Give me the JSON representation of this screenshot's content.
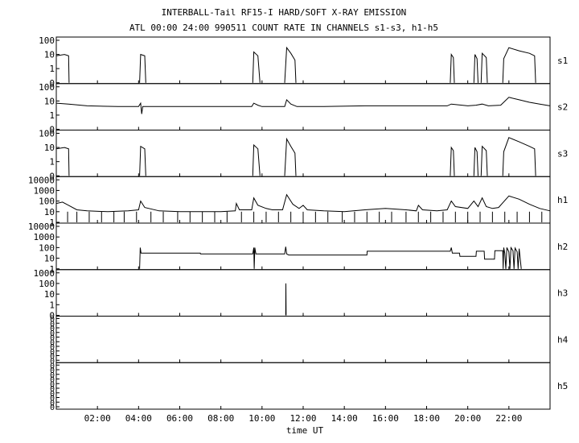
{
  "chart_data": {
    "type": "line",
    "title": "INTERBALL-Tail RF15-I HARD/SOFT X-RAY EMISSION",
    "subtitle": "ATL 00:00 24:00 990511  COUNT RATE IN CHANNELS s1-s3, h1-h5",
    "xlabel": "time UT",
    "x_unit": "hours UT",
    "xlim": [
      0,
      24
    ],
    "x_ticks": [
      {
        "label": "02:00",
        "value": 2
      },
      {
        "label": "04:00",
        "value": 4
      },
      {
        "label": "06:00",
        "value": 6
      },
      {
        "label": "08:00",
        "value": 8
      },
      {
        "label": "10:00",
        "value": 10
      },
      {
        "label": "12:00",
        "value": 12
      },
      {
        "label": "14:00",
        "value": 14
      },
      {
        "label": "16:00",
        "value": 16
      },
      {
        "label": "18:00",
        "value": 18
      },
      {
        "label": "20:00",
        "value": 20
      },
      {
        "label": "22:00",
        "value": 22
      }
    ],
    "y_scale": "log",
    "grid": false,
    "line_color": "#000000",
    "panels": [
      {
        "name": "s1",
        "ylim": [
          0.1,
          100
        ],
        "y_tick_labels": [
          "100",
          "10",
          "1",
          "0"
        ],
        "y_tick_values": [
          100,
          10,
          1,
          0.1
        ],
        "series": [
          [
            [
              0.0,
              8
            ],
            [
              0.4,
              10
            ],
            [
              0.6,
              8
            ],
            [
              0.62,
              0.1
            ]
          ],
          [
            [
              4.05,
              0.1
            ],
            [
              4.1,
              10
            ],
            [
              4.3,
              8
            ],
            [
              4.35,
              0.1
            ]
          ],
          [
            [
              9.55,
              0.1
            ],
            [
              9.6,
              15
            ],
            [
              9.8,
              8
            ],
            [
              9.9,
              0.1
            ]
          ],
          [
            [
              11.1,
              0.1
            ],
            [
              11.2,
              30
            ],
            [
              11.4,
              12
            ],
            [
              11.6,
              4
            ],
            [
              11.65,
              0.1
            ]
          ],
          [
            [
              19.15,
              0.1
            ],
            [
              19.2,
              10
            ],
            [
              19.3,
              6
            ],
            [
              19.35,
              0.1
            ]
          ],
          [
            [
              20.3,
              0.1
            ],
            [
              20.35,
              10
            ],
            [
              20.45,
              5
            ],
            [
              20.5,
              0.1
            ]
          ],
          [
            [
              20.65,
              0.1
            ],
            [
              20.7,
              12
            ],
            [
              20.9,
              6
            ],
            [
              20.95,
              0.1
            ]
          ],
          [
            [
              21.7,
              0.1
            ],
            [
              21.75,
              5
            ],
            [
              22.0,
              30
            ],
            [
              22.5,
              18
            ],
            [
              23.0,
              12
            ],
            [
              23.25,
              8
            ],
            [
              23.3,
              0.1
            ]
          ]
        ]
      },
      {
        "name": "s2",
        "ylim": [
          0.1,
          100
        ],
        "y_tick_labels": [
          "100",
          "10",
          "1",
          "0"
        ],
        "y_tick_values": [
          100,
          10,
          1,
          0.1
        ],
        "series": [
          [
            [
              0.0,
              7
            ],
            [
              0.6,
              6
            ],
            [
              1.5,
              4.5
            ],
            [
              3.0,
              4
            ],
            [
              4.0,
              4
            ],
            [
              4.1,
              7
            ],
            [
              4.15,
              1.2
            ],
            [
              4.2,
              4
            ],
            [
              5.0,
              4
            ],
            [
              7.0,
              4
            ],
            [
              8.0,
              4
            ],
            [
              9.5,
              4
            ],
            [
              9.6,
              7
            ],
            [
              9.8,
              5
            ],
            [
              10.0,
              4
            ],
            [
              11.1,
              4
            ],
            [
              11.2,
              12
            ],
            [
              11.4,
              6
            ],
            [
              11.7,
              4
            ],
            [
              13.0,
              4
            ],
            [
              15.0,
              4.5
            ],
            [
              17.0,
              4.5
            ],
            [
              19.0,
              4.5
            ],
            [
              19.2,
              6
            ],
            [
              20.0,
              4.5
            ],
            [
              20.4,
              5
            ],
            [
              20.7,
              6
            ],
            [
              21.0,
              4.5
            ],
            [
              21.6,
              5
            ],
            [
              22.0,
              18
            ],
            [
              22.5,
              12
            ],
            [
              23.0,
              8
            ],
            [
              23.5,
              6
            ],
            [
              24.0,
              4.5
            ]
          ]
        ]
      },
      {
        "name": "s3",
        "ylim": [
          0.1,
          100
        ],
        "y_tick_labels": [
          "100",
          "10",
          "1",
          "0"
        ],
        "y_tick_values": [
          100,
          10,
          1,
          0.1
        ],
        "series": [
          [
            [
              0.0,
              8
            ],
            [
              0.4,
              10
            ],
            [
              0.6,
              8
            ],
            [
              0.62,
              0.1
            ]
          ],
          [
            [
              4.05,
              0.1
            ],
            [
              4.1,
              12
            ],
            [
              4.3,
              8
            ],
            [
              4.35,
              0.1
            ]
          ],
          [
            [
              9.55,
              0.1
            ],
            [
              9.6,
              15
            ],
            [
              9.8,
              8
            ],
            [
              9.9,
              0.1
            ]
          ],
          [
            [
              11.1,
              0.1
            ],
            [
              11.2,
              40
            ],
            [
              11.4,
              12
            ],
            [
              11.6,
              4
            ],
            [
              11.65,
              0.1
            ]
          ],
          [
            [
              19.15,
              0.1
            ],
            [
              19.2,
              10
            ],
            [
              19.3,
              6
            ],
            [
              19.35,
              0.1
            ]
          ],
          [
            [
              20.3,
              0.1
            ],
            [
              20.35,
              10
            ],
            [
              20.45,
              5
            ],
            [
              20.5,
              0.1
            ]
          ],
          [
            [
              20.65,
              0.1
            ],
            [
              20.7,
              12
            ],
            [
              20.9,
              6
            ],
            [
              20.95,
              0.1
            ]
          ],
          [
            [
              21.7,
              0.1
            ],
            [
              21.75,
              5
            ],
            [
              22.0,
              50
            ],
            [
              22.5,
              25
            ],
            [
              23.0,
              12
            ],
            [
              23.25,
              8
            ],
            [
              23.3,
              0.1
            ]
          ]
        ]
      },
      {
        "name": "h1",
        "ylim": [
          1,
          10000
        ],
        "y_tick_labels": [
          "10000",
          "1000",
          "100",
          "10",
          "1"
        ],
        "y_tick_values": [
          10000,
          1000,
          100,
          10,
          1
        ],
        "series": [
          [
            [
              0.0,
              60
            ],
            [
              0.3,
              80
            ],
            [
              0.6,
              40
            ],
            [
              1.0,
              15
            ],
            [
              1.5,
              12
            ],
            [
              2.5,
              10
            ],
            [
              3.5,
              12
            ],
            [
              4.0,
              15
            ],
            [
              4.1,
              100
            ],
            [
              4.3,
              25
            ],
            [
              5.0,
              12
            ],
            [
              6.0,
              10
            ],
            [
              7.0,
              10
            ],
            [
              8.0,
              10
            ],
            [
              8.7,
              12
            ],
            [
              8.75,
              60
            ],
            [
              8.9,
              15
            ],
            [
              9.5,
              15
            ],
            [
              9.6,
              200
            ],
            [
              9.8,
              40
            ],
            [
              10.2,
              20
            ],
            [
              10.5,
              15
            ],
            [
              11.0,
              15
            ],
            [
              11.2,
              400
            ],
            [
              11.5,
              50
            ],
            [
              11.8,
              20
            ],
            [
              12.0,
              40
            ],
            [
              12.2,
              15
            ],
            [
              13.0,
              12
            ],
            [
              14.0,
              10
            ],
            [
              15.0,
              15
            ],
            [
              16.0,
              20
            ],
            [
              17.0,
              15
            ],
            [
              17.5,
              12
            ],
            [
              17.6,
              40
            ],
            [
              17.8,
              15
            ],
            [
              18.5,
              12
            ],
            [
              19.0,
              15
            ],
            [
              19.2,
              100
            ],
            [
              19.4,
              30
            ],
            [
              20.0,
              20
            ],
            [
              20.3,
              100
            ],
            [
              20.5,
              30
            ],
            [
              20.7,
              200
            ],
            [
              20.9,
              30
            ],
            [
              21.2,
              20
            ],
            [
              21.5,
              25
            ],
            [
              22.0,
              300
            ],
            [
              22.5,
              150
            ],
            [
              23.0,
              50
            ],
            [
              23.5,
              20
            ],
            [
              24.0,
              12
            ]
          ]
        ],
        "dropouts": [
          0.55,
          1.0,
          1.6,
          2.2,
          2.8,
          3.3,
          3.9,
          4.6,
          5.2,
          5.9,
          6.5,
          7.1,
          7.7,
          8.3,
          9.0,
          9.6,
          10.2,
          10.8,
          11.4,
          12.0,
          12.6,
          13.2,
          13.9,
          14.5,
          15.1,
          15.7,
          16.3,
          17.0,
          17.6,
          18.2,
          18.8,
          19.4,
          20.0,
          20.6,
          21.2,
          21.8,
          22.4,
          23.0,
          23.6
        ]
      },
      {
        "name": "h2",
        "ylim": [
          1,
          10000
        ],
        "y_tick_labels": [
          "10000",
          "1000",
          "100",
          "10",
          "1"
        ],
        "y_tick_values": [
          10000,
          1000,
          100,
          10,
          1
        ],
        "series": [
          [
            [
              4.05,
              1
            ],
            [
              4.08,
              100
            ],
            [
              4.12,
              30
            ],
            [
              7.0,
              30
            ],
            [
              7.01,
              25
            ],
            [
              9.55,
              25
            ],
            [
              9.6,
              100
            ],
            [
              9.62,
              1
            ],
            [
              9.65,
              100
            ],
            [
              9.7,
              25
            ],
            [
              11.1,
              25
            ],
            [
              11.15,
              120
            ],
            [
              11.2,
              25
            ],
            [
              11.3,
              20
            ],
            [
              15.1,
              20
            ],
            [
              15.11,
              45
            ],
            [
              19.15,
              45
            ],
            [
              19.2,
              100
            ],
            [
              19.25,
              30
            ],
            [
              19.6,
              30
            ],
            [
              19.62,
              15
            ],
            [
              20.4,
              15
            ],
            [
              20.42,
              45
            ],
            [
              20.8,
              45
            ],
            [
              20.82,
              8
            ],
            [
              21.3,
              8
            ],
            [
              21.32,
              50
            ],
            [
              21.7,
              50
            ],
            [
              21.72,
              1
            ],
            [
              21.75,
              100
            ],
            [
              21.8,
              30
            ],
            [
              21.85,
              1
            ],
            [
              21.9,
              100
            ],
            [
              22.0,
              40
            ],
            [
              22.05,
              1
            ],
            [
              22.1,
              100
            ],
            [
              22.2,
              50
            ],
            [
              22.25,
              1
            ],
            [
              22.3,
              90
            ],
            [
              22.4,
              40
            ],
            [
              22.45,
              1
            ],
            [
              22.5,
              80
            ],
            [
              22.6,
              1
            ]
          ]
        ]
      },
      {
        "name": "h3",
        "ylim": [
          0.1,
          1000
        ],
        "y_tick_labels": [
          "1000",
          "100",
          "10",
          "1",
          "0"
        ],
        "y_tick_values": [
          1000,
          100,
          10,
          1,
          0.1
        ],
        "series": [
          [
            [
              11.15,
              0.1
            ],
            [
              11.16,
              100
            ],
            [
              11.17,
              0.1
            ]
          ]
        ]
      },
      {
        "name": "h4",
        "ylim": [
          0,
          1
        ],
        "y_tick_labels": [
          "0",
          "0",
          "0",
          "0",
          "0",
          "0",
          "0",
          "0",
          "0",
          "0"
        ],
        "series": []
      },
      {
        "name": "h5",
        "ylim": [
          0,
          1
        ],
        "y_tick_labels": [
          "0",
          "0",
          "0",
          "0",
          "0",
          "0",
          "0",
          "0",
          "0",
          "0"
        ],
        "series": []
      }
    ]
  }
}
